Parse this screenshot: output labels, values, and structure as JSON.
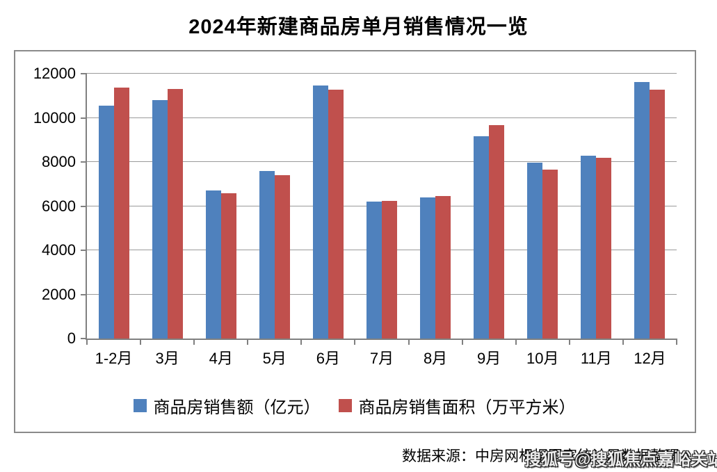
{
  "title": {
    "text": "2024年新建商品房单月销售情况一览",
    "color": "#000000"
  },
  "chart_data": {
    "type": "bar",
    "title": "2024年新建商品房单月销售情况一览",
    "categories": [
      "1-2月",
      "3月",
      "4月",
      "5月",
      "6月",
      "7月",
      "8月",
      "9月",
      "10月",
      "11月",
      "12月"
    ],
    "series": [
      {
        "name": "商品房销售额（亿元）",
        "color": "#4F81BD",
        "values": [
          10566,
          10789,
          6712,
          7598,
          11468,
          6197,
          6393,
          9157,
          7975,
          8270,
          11625
        ]
      },
      {
        "name": "商品房销售面积（万平方米）",
        "color": "#C0504D",
        "values": [
          11369,
          11299,
          6584,
          7390,
          11274,
          6233,
          6453,
          9682,
          7646,
          8188,
          11267
        ]
      }
    ],
    "xlabel": "",
    "ylabel": "",
    "ylim": [
      0,
      12000
    ],
    "yticks": [
      0,
      2000,
      4000,
      6000,
      8000,
      10000,
      12000
    ],
    "grid": true,
    "legend_position": "bottom",
    "axis_color": "#808080",
    "gridline_color": "#9a9a9a"
  },
  "footer": {
    "source_text": "数据来源：中房网根据国家统计局数据整理",
    "watermark": "搜狐号@搜狐焦点嘉峪关站"
  }
}
